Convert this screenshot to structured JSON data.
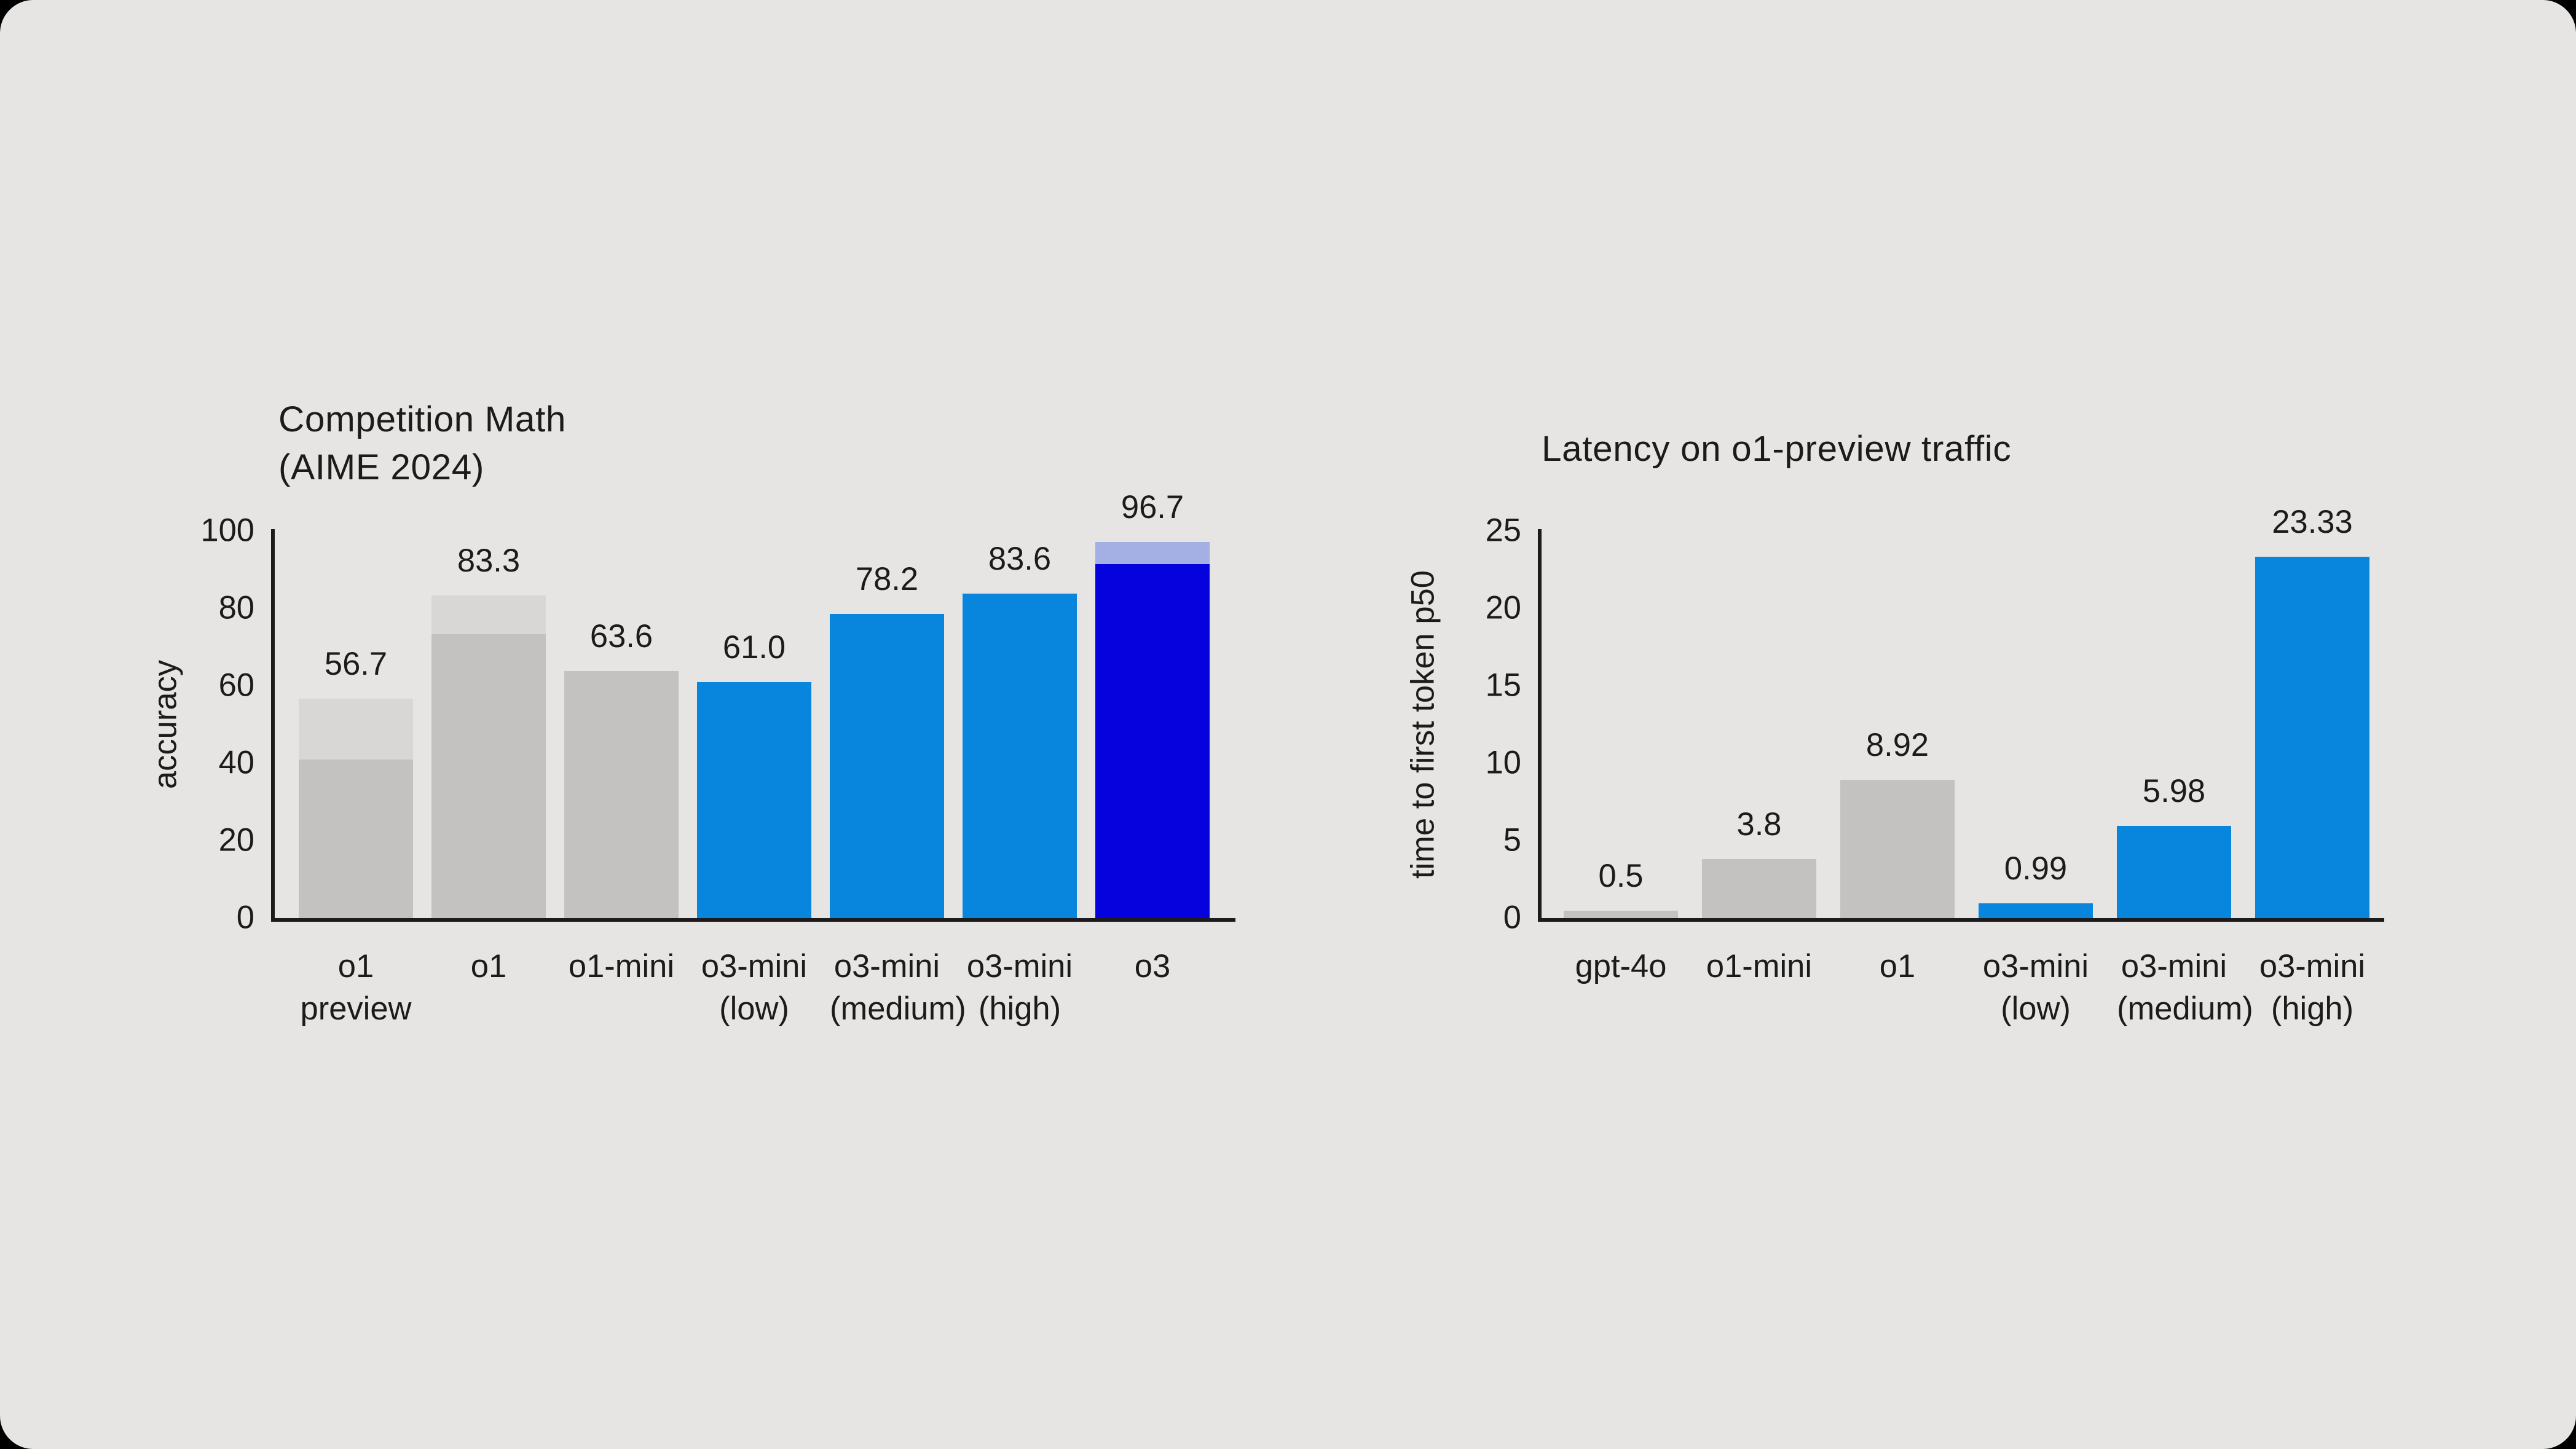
{
  "page": {
    "background": "#000000",
    "canvas_background": "#e6e5e3",
    "text_color": "#1b1b1b",
    "axis_color": "#1c1c1c"
  },
  "palette": {
    "gray": "#c3c2c1",
    "light_gray": "#d8d7d5",
    "blue": "#0886de",
    "dark_blue": "#0502dd",
    "periwinkle": "#a4afe3"
  },
  "chart_data": [
    {
      "type": "bar",
      "title": "Competition Math\n(AIME 2024)",
      "xlabel": "",
      "ylabel": "accuracy",
      "ylim": [
        0,
        100
      ],
      "yticks": [
        0,
        20,
        40,
        60,
        80,
        100
      ],
      "grid": false,
      "legend": null,
      "categories": [
        "o1\npreview",
        "o1",
        "o1-mini",
        "o3-mini\n(low)",
        "o3-mini\n(medium)",
        "o3-mini\n(high)",
        "o3"
      ],
      "values": [
        56.7,
        83.3,
        63.6,
        61.0,
        78.2,
        83.6,
        96.7
      ],
      "bars": [
        {
          "label": "o1\npreview",
          "value": 56.7,
          "value_label": "56.7",
          "style": "gray_split",
          "base_value_estimated": 40.8
        },
        {
          "label": "o1",
          "value": 83.3,
          "value_label": "83.3",
          "style": "gray_split",
          "base_value_estimated": 73.0
        },
        {
          "label": "o1-mini",
          "value": 63.6,
          "value_label": "63.6",
          "style": "gray"
        },
        {
          "label": "o3-mini\n(low)",
          "value": 61.0,
          "value_label": "61.0",
          "style": "blue"
        },
        {
          "label": "o3-mini\n(medium)",
          "value": 78.2,
          "value_label": "78.2",
          "style": "blue"
        },
        {
          "label": "o3-mini\n(high)",
          "value": 83.6,
          "value_label": "83.6",
          "style": "blue"
        },
        {
          "label": "o3",
          "value": 96.7,
          "value_label": "96.7",
          "style": "blue_split",
          "base_value_estimated": 91.0
        }
      ]
    },
    {
      "type": "bar",
      "title": "Latency on o1-preview traffic",
      "xlabel": "",
      "ylabel": "time to first token p50",
      "ylim": [
        0,
        25
      ],
      "yticks": [
        0,
        5,
        10,
        15,
        20,
        25
      ],
      "grid": false,
      "legend": null,
      "categories": [
        "gpt-4o",
        "o1-mini",
        "o1",
        "o3-mini\n(low)",
        "o3-mini\n(medium)",
        "o3-mini\n(high)"
      ],
      "values": [
        0.5,
        3.8,
        8.92,
        0.99,
        5.98,
        23.33
      ],
      "bars": [
        {
          "label": "gpt-4o",
          "value": 0.5,
          "value_label": "0.5",
          "style": "gray"
        },
        {
          "label": "o1-mini",
          "value": 3.8,
          "value_label": "3.8",
          "style": "gray"
        },
        {
          "label": "o1",
          "value": 8.92,
          "value_label": "8.92",
          "style": "gray"
        },
        {
          "label": "o3-mini\n(low)",
          "value": 0.99,
          "value_label": "0.99",
          "style": "blue"
        },
        {
          "label": "o3-mini\n(medium)",
          "value": 5.98,
          "value_label": "5.98",
          "style": "blue"
        },
        {
          "label": "o3-mini\n(high)",
          "value": 23.33,
          "value_label": "23.33",
          "style": "blue"
        }
      ]
    }
  ]
}
